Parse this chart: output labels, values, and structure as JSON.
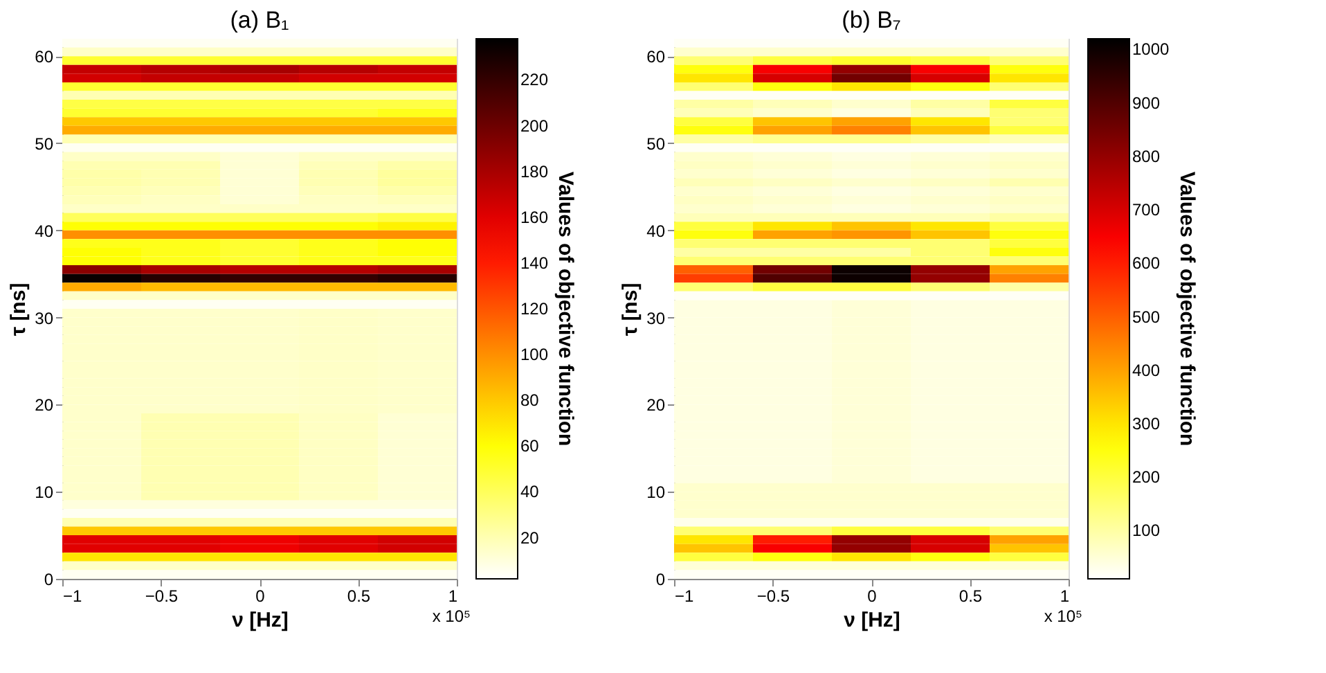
{
  "chart_data": [
    {
      "type": "heatmap",
      "title": "(a) B₁",
      "xlabel": "ν [Hz]",
      "ylabel": "τ [ns]",
      "clabel": "Values of objective function",
      "annotations": [
        "x 10⁵"
      ],
      "x": [
        -0.8,
        -0.4,
        0,
        0.4,
        0.8
      ],
      "xlim": [
        -1,
        1
      ],
      "xticks": [
        -1,
        -0.5,
        0,
        0.5,
        1
      ],
      "ylim": [
        0,
        62
      ],
      "yticks": [
        0,
        10,
        20,
        30,
        40,
        50,
        60
      ],
      "clim": [
        2,
        238
      ],
      "cticks": [
        20,
        40,
        60,
        80,
        100,
        120,
        140,
        160,
        180,
        200,
        220
      ],
      "cells": [
        [
          5,
          5,
          5,
          5,
          5
        ],
        [
          15,
          15,
          15,
          15,
          15
        ],
        [
          50,
          50,
          50,
          50,
          50
        ],
        [
          170,
          175,
          180,
          175,
          170
        ],
        [
          165,
          170,
          170,
          165,
          165
        ],
        [
          50,
          50,
          50,
          50,
          50
        ],
        [
          20,
          20,
          20,
          20,
          20
        ],
        [
          45,
          45,
          45,
          45,
          45
        ],
        [
          50,
          50,
          50,
          50,
          55
        ],
        [
          80,
          80,
          80,
          80,
          80
        ],
        [
          90,
          90,
          90,
          90,
          90
        ],
        [
          20,
          20,
          20,
          20,
          20
        ],
        [
          5,
          5,
          5,
          5,
          5
        ],
        [
          15,
          15,
          12,
          15,
          15
        ],
        [
          20,
          20,
          12,
          18,
          22
        ],
        [
          22,
          20,
          12,
          20,
          25
        ],
        [
          22,
          20,
          12,
          20,
          25
        ],
        [
          20,
          18,
          12,
          18,
          22
        ],
        [
          18,
          16,
          12,
          16,
          18
        ],
        [
          15,
          15,
          15,
          15,
          15
        ],
        [
          40,
          40,
          40,
          40,
          45
        ],
        [
          60,
          60,
          60,
          60,
          65
        ],
        [
          100,
          100,
          100,
          100,
          100
        ],
        [
          55,
          55,
          50,
          55,
          60
        ],
        [
          60,
          55,
          50,
          55,
          60
        ],
        [
          60,
          55,
          50,
          55,
          55
        ],
        [
          190,
          180,
          175,
          175,
          180
        ],
        [
          235,
          225,
          220,
          220,
          225
        ],
        [
          90,
          85,
          85,
          85,
          85
        ],
        [
          15,
          15,
          15,
          15,
          15
        ],
        [
          5,
          5,
          5,
          5,
          5
        ],
        [
          14,
          14,
          14,
          15,
          14
        ],
        [
          14,
          14,
          14,
          15,
          14
        ],
        [
          14,
          14,
          14,
          15,
          14
        ],
        [
          14,
          14,
          14,
          15,
          14
        ],
        [
          14,
          14,
          14,
          15,
          14
        ],
        [
          14,
          14,
          14,
          15,
          14
        ],
        [
          14,
          14,
          14,
          15,
          14
        ],
        [
          14,
          14,
          14,
          15,
          14
        ],
        [
          14,
          14,
          14,
          15,
          14
        ],
        [
          14,
          14,
          14,
          15,
          14
        ],
        [
          14,
          14,
          14,
          15,
          14
        ],
        [
          14,
          14,
          14,
          15,
          14
        ],
        [
          14,
          20,
          20,
          16,
          12
        ],
        [
          14,
          20,
          20,
          16,
          12
        ],
        [
          14,
          20,
          20,
          16,
          12
        ],
        [
          14,
          20,
          20,
          16,
          12
        ],
        [
          14,
          20,
          20,
          16,
          12
        ],
        [
          14,
          20,
          20,
          16,
          12
        ],
        [
          14,
          20,
          20,
          16,
          12
        ],
        [
          14,
          20,
          20,
          16,
          12
        ],
        [
          14,
          20,
          20,
          16,
          12
        ],
        [
          14,
          20,
          20,
          16,
          12
        ],
        [
          10,
          10,
          10,
          10,
          10
        ],
        [
          5,
          5,
          5,
          5,
          5
        ],
        [
          20,
          20,
          20,
          20,
          20
        ],
        [
          80,
          80,
          80,
          80,
          80
        ],
        [
          160,
          160,
          155,
          160,
          165
        ],
        [
          160,
          160,
          155,
          160,
          165
        ],
        [
          70,
          70,
          70,
          70,
          70
        ],
        [
          15,
          15,
          15,
          15,
          15
        ],
        [
          5,
          5,
          5,
          5,
          5
        ]
      ]
    },
    {
      "type": "heatmap",
      "title": "(b) B₇",
      "xlabel": "ν [Hz]",
      "ylabel": "τ [ns]",
      "clabel": "Values of objective function",
      "annotations": [
        "x 10⁵"
      ],
      "x": [
        -0.8,
        -0.4,
        0,
        0.4,
        0.8
      ],
      "xlim": [
        -1,
        1
      ],
      "xticks": [
        -1,
        -0.5,
        0,
        0.5,
        1
      ],
      "ylim": [
        0,
        62
      ],
      "yticks": [
        0,
        10,
        20,
        30,
        40,
        50,
        60
      ],
      "clim": [
        10,
        1020
      ],
      "cticks": [
        100,
        200,
        300,
        400,
        500,
        600,
        700,
        800,
        900,
        1000
      ],
      "cells": [
        [
          20,
          20,
          20,
          20,
          20
        ],
        [
          60,
          60,
          60,
          60,
          60
        ],
        [
          150,
          200,
          220,
          200,
          150
        ],
        [
          250,
          650,
          800,
          650,
          250
        ],
        [
          300,
          700,
          850,
          700,
          300
        ],
        [
          150,
          250,
          300,
          250,
          150
        ],
        [
          20,
          20,
          20,
          20,
          20
        ],
        [
          100,
          80,
          60,
          100,
          200
        ],
        [
          80,
          60,
          40,
          80,
          150
        ],
        [
          200,
          350,
          400,
          300,
          150
        ],
        [
          250,
          400,
          450,
          350,
          200
        ],
        [
          100,
          120,
          120,
          100,
          80
        ],
        [
          20,
          20,
          20,
          20,
          20
        ],
        [
          60,
          50,
          40,
          50,
          60
        ],
        [
          70,
          60,
          50,
          60,
          70
        ],
        [
          60,
          50,
          40,
          50,
          60
        ],
        [
          80,
          70,
          60,
          70,
          90
        ],
        [
          60,
          50,
          40,
          50,
          60
        ],
        [
          70,
          60,
          50,
          60,
          70
        ],
        [
          60,
          50,
          40,
          50,
          60
        ],
        [
          80,
          80,
          80,
          80,
          100
        ],
        [
          200,
          300,
          350,
          300,
          200
        ],
        [
          250,
          400,
          420,
          350,
          250
        ],
        [
          150,
          150,
          150,
          150,
          200
        ],
        [
          100,
          100,
          100,
          150,
          250
        ],
        [
          150,
          150,
          150,
          150,
          150
        ],
        [
          500,
          850,
          1000,
          800,
          400
        ],
        [
          550,
          900,
          1000,
          800,
          450
        ],
        [
          150,
          200,
          200,
          150,
          100
        ],
        [
          20,
          20,
          20,
          20,
          20
        ],
        [
          40,
          40,
          50,
          40,
          40
        ],
        [
          40,
          40,
          50,
          40,
          40
        ],
        [
          40,
          40,
          50,
          40,
          40
        ],
        [
          40,
          40,
          50,
          40,
          40
        ],
        [
          40,
          40,
          50,
          40,
          40
        ],
        [
          40,
          40,
          50,
          40,
          40
        ],
        [
          40,
          40,
          50,
          40,
          40
        ],
        [
          40,
          40,
          50,
          40,
          40
        ],
        [
          40,
          40,
          50,
          40,
          40
        ],
        [
          40,
          40,
          50,
          40,
          40
        ],
        [
          40,
          40,
          50,
          40,
          40
        ],
        [
          40,
          40,
          50,
          40,
          40
        ],
        [
          40,
          40,
          50,
          40,
          40
        ],
        [
          40,
          40,
          50,
          40,
          40
        ],
        [
          40,
          40,
          50,
          40,
          40
        ],
        [
          40,
          40,
          50,
          40,
          40
        ],
        [
          40,
          40,
          50,
          40,
          40
        ],
        [
          40,
          40,
          50,
          40,
          40
        ],
        [
          40,
          40,
          50,
          40,
          40
        ],
        [
          40,
          40,
          50,
          40,
          40
        ],
        [
          40,
          40,
          50,
          40,
          40
        ],
        [
          60,
          60,
          60,
          60,
          60
        ],
        [
          60,
          60,
          60,
          60,
          60
        ],
        [
          60,
          60,
          60,
          60,
          60
        ],
        [
          60,
          60,
          60,
          60,
          60
        ],
        [
          30,
          30,
          30,
          30,
          30
        ],
        [
          150,
          150,
          200,
          200,
          150
        ],
        [
          300,
          600,
          800,
          700,
          400
        ],
        [
          350,
          650,
          800,
          700,
          350
        ],
        [
          200,
          250,
          300,
          250,
          200
        ],
        [
          50,
          50,
          50,
          50,
          50
        ],
        [
          20,
          20,
          20,
          20,
          20
        ]
      ]
    }
  ]
}
